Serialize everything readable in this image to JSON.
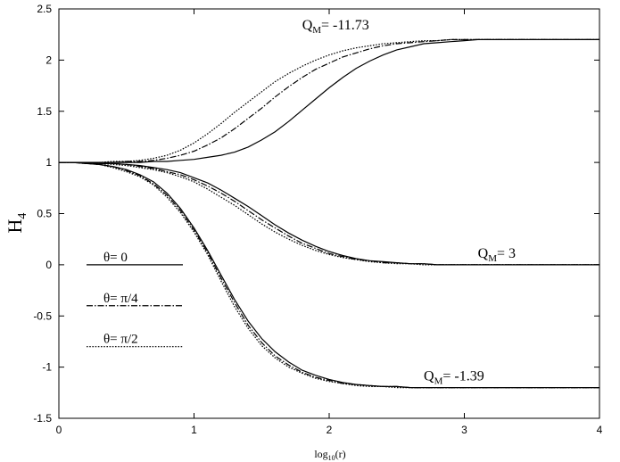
{
  "chart_data": {
    "type": "line",
    "xlabel": "log",
    "xlabel_sub": "10",
    "xlabel_tail": "(r)",
    "ylabel": "H",
    "ylabel_sub": "4",
    "xlim": [
      0,
      4
    ],
    "ylim": [
      -1.5,
      2.5
    ],
    "x_ticks": [
      0,
      1,
      2,
      3,
      4
    ],
    "y_ticks": [
      -1.5,
      -1,
      -0.5,
      0,
      0.5,
      1,
      1.5,
      2,
      2.5
    ],
    "grid": false,
    "legend": {
      "placement": "left",
      "entries": [
        {
          "label": "θ= 0",
          "style": "solid"
        },
        {
          "label": "θ= π/4",
          "style": "dashdot"
        },
        {
          "label": "θ= π/2",
          "style": "dotted"
        }
      ]
    },
    "annotations": [
      {
        "text": "Q",
        "sub": "M",
        "tail": "= -11.73",
        "x": 1.8,
        "y": 2.3
      },
      {
        "text": "Q",
        "sub": "M",
        "tail": "= 3",
        "x": 3.1,
        "y": 0.07
      },
      {
        "text": "Q",
        "sub": "M",
        "tail": "= -1.39",
        "x": 2.7,
        "y": -1.13
      }
    ],
    "x": [
      0,
      0.1,
      0.2,
      0.3,
      0.4,
      0.5,
      0.6,
      0.7,
      0.8,
      0.9,
      1.0,
      1.1,
      1.2,
      1.3,
      1.4,
      1.5,
      1.6,
      1.7,
      1.8,
      1.9,
      2.0,
      2.1,
      2.2,
      2.3,
      2.4,
      2.5,
      2.6,
      2.7,
      2.8,
      2.9,
      3.0,
      3.1,
      3.2,
      3.3,
      3.4,
      3.5,
      3.6,
      3.7,
      3.8,
      3.9,
      4.0
    ],
    "series": [
      {
        "group": "QM=-11.73",
        "theta": "θ= 0",
        "style": "solid",
        "values": [
          1.0,
          1.0,
          1.0,
          1.0,
          1.0,
          1.0,
          1.0,
          1.01,
          1.01,
          1.02,
          1.03,
          1.05,
          1.07,
          1.1,
          1.15,
          1.22,
          1.3,
          1.4,
          1.51,
          1.62,
          1.73,
          1.83,
          1.92,
          1.99,
          2.05,
          2.1,
          2.13,
          2.16,
          2.17,
          2.18,
          2.19,
          2.2,
          2.2,
          2.2,
          2.2,
          2.2,
          2.2,
          2.2,
          2.2,
          2.2,
          2.2
        ]
      },
      {
        "group": "QM=-11.73",
        "theta": "θ= π/4",
        "style": "dashdot",
        "values": [
          1.0,
          1.0,
          1.0,
          1.0,
          1.0,
          1.01,
          1.01,
          1.02,
          1.04,
          1.07,
          1.11,
          1.17,
          1.24,
          1.33,
          1.43,
          1.53,
          1.64,
          1.74,
          1.83,
          1.91,
          1.97,
          2.03,
          2.07,
          2.11,
          2.14,
          2.16,
          2.17,
          2.18,
          2.19,
          2.2,
          2.2,
          2.2,
          2.2,
          2.2,
          2.2,
          2.2,
          2.2,
          2.2,
          2.2,
          2.2,
          2.2
        ]
      },
      {
        "group": "QM=-11.73",
        "theta": "θ= π/2",
        "style": "dotted",
        "values": [
          1.0,
          1.0,
          1.0,
          1.0,
          1.01,
          1.01,
          1.02,
          1.04,
          1.07,
          1.12,
          1.19,
          1.28,
          1.38,
          1.49,
          1.59,
          1.69,
          1.79,
          1.87,
          1.94,
          2.0,
          2.05,
          2.09,
          2.12,
          2.14,
          2.16,
          2.17,
          2.18,
          2.19,
          2.19,
          2.2,
          2.2,
          2.2,
          2.2,
          2.2,
          2.2,
          2.2,
          2.2,
          2.2,
          2.2,
          2.2,
          2.2
        ]
      },
      {
        "group": "QM=3",
        "theta": "θ= 0",
        "style": "solid",
        "values": [
          1.0,
          1.0,
          1.0,
          0.99,
          0.99,
          0.98,
          0.97,
          0.95,
          0.93,
          0.9,
          0.85,
          0.8,
          0.73,
          0.65,
          0.57,
          0.48,
          0.39,
          0.31,
          0.24,
          0.18,
          0.13,
          0.09,
          0.06,
          0.04,
          0.03,
          0.02,
          0.01,
          0.01,
          0.0,
          0.0,
          0.0,
          0.0,
          0.0,
          0.0,
          0.0,
          0.0,
          0.0,
          0.0,
          0.0,
          0.0,
          0.0
        ]
      },
      {
        "group": "QM=3",
        "theta": "θ= π/4",
        "style": "dashdot",
        "values": [
          1.0,
          1.0,
          1.0,
          0.99,
          0.99,
          0.98,
          0.96,
          0.94,
          0.91,
          0.88,
          0.83,
          0.77,
          0.7,
          0.62,
          0.53,
          0.44,
          0.36,
          0.28,
          0.21,
          0.16,
          0.11,
          0.08,
          0.05,
          0.04,
          0.02,
          0.02,
          0.01,
          0.01,
          0.0,
          0.0,
          0.0,
          0.0,
          0.0,
          0.0,
          0.0,
          0.0,
          0.0,
          0.0,
          0.0,
          0.0,
          0.0
        ]
      },
      {
        "group": "QM=3",
        "theta": "θ= π/2",
        "style": "dotted",
        "values": [
          1.0,
          1.0,
          0.99,
          0.99,
          0.98,
          0.97,
          0.95,
          0.93,
          0.9,
          0.86,
          0.81,
          0.74,
          0.66,
          0.58,
          0.49,
          0.4,
          0.32,
          0.25,
          0.19,
          0.14,
          0.1,
          0.07,
          0.05,
          0.03,
          0.02,
          0.01,
          0.01,
          0.0,
          0.0,
          0.0,
          0.0,
          0.0,
          0.0,
          0.0,
          0.0,
          0.0,
          0.0,
          0.0,
          0.0,
          0.0,
          0.0
        ]
      },
      {
        "group": "QM=-1.39",
        "theta": "θ= 0",
        "style": "solid",
        "values": [
          1.0,
          1.0,
          0.99,
          0.98,
          0.96,
          0.93,
          0.88,
          0.81,
          0.7,
          0.55,
          0.36,
          0.14,
          -0.1,
          -0.34,
          -0.55,
          -0.72,
          -0.85,
          -0.95,
          -1.03,
          -1.08,
          -1.12,
          -1.15,
          -1.17,
          -1.18,
          -1.19,
          -1.19,
          -1.2,
          -1.2,
          -1.2,
          -1.2,
          -1.2,
          -1.2,
          -1.2,
          -1.2,
          -1.2,
          -1.2,
          -1.2,
          -1.2,
          -1.2,
          -1.2,
          -1.2
        ]
      },
      {
        "group": "QM=-1.39",
        "theta": "θ= π/4",
        "style": "dashdot",
        "values": [
          1.0,
          1.0,
          0.99,
          0.98,
          0.96,
          0.92,
          0.87,
          0.79,
          0.68,
          0.53,
          0.34,
          0.12,
          -0.13,
          -0.37,
          -0.59,
          -0.76,
          -0.89,
          -0.98,
          -1.05,
          -1.1,
          -1.13,
          -1.16,
          -1.17,
          -1.18,
          -1.19,
          -1.19,
          -1.2,
          -1.2,
          -1.2,
          -1.2,
          -1.2,
          -1.2,
          -1.2,
          -1.2,
          -1.2,
          -1.2,
          -1.2,
          -1.2,
          -1.2,
          -1.2,
          -1.2
        ]
      },
      {
        "group": "QM=-1.39",
        "theta": "θ= π/2",
        "style": "dotted",
        "values": [
          1.0,
          1.0,
          0.99,
          0.98,
          0.95,
          0.91,
          0.86,
          0.78,
          0.66,
          0.51,
          0.32,
          0.1,
          -0.16,
          -0.41,
          -0.62,
          -0.79,
          -0.91,
          -1.0,
          -1.06,
          -1.11,
          -1.14,
          -1.16,
          -1.18,
          -1.19,
          -1.19,
          -1.2,
          -1.2,
          -1.2,
          -1.2,
          -1.2,
          -1.2,
          -1.2,
          -1.2,
          -1.2,
          -1.2,
          -1.2,
          -1.2,
          -1.2,
          -1.2,
          -1.2,
          -1.2
        ]
      }
    ]
  }
}
